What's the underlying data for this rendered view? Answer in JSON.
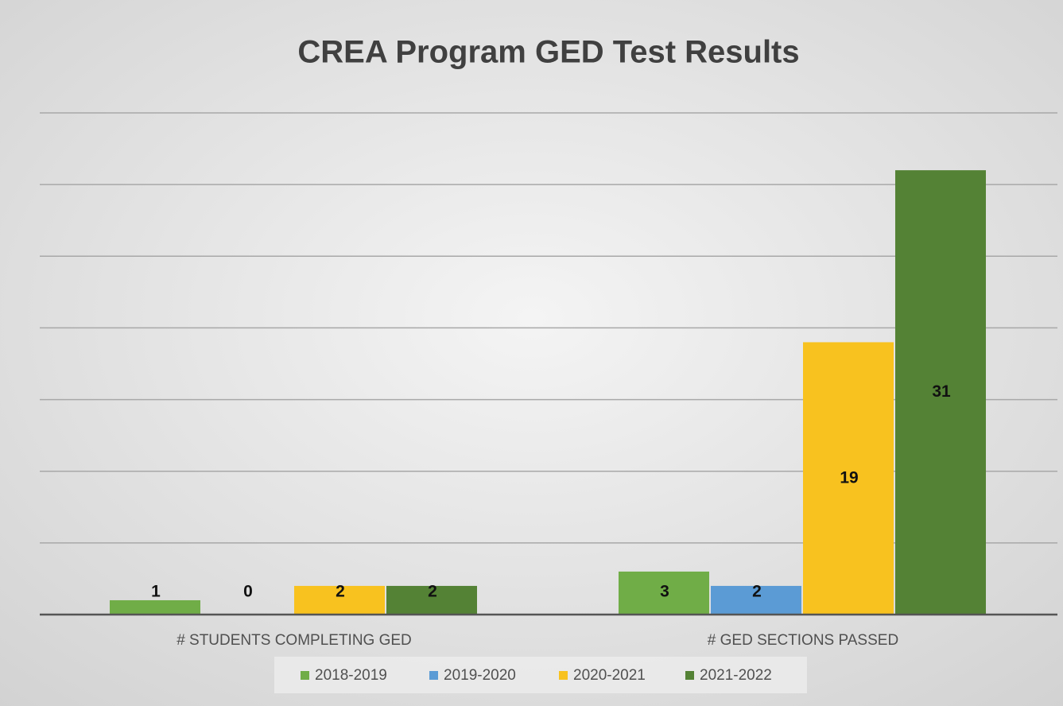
{
  "chart_data": {
    "type": "bar",
    "title": "CREA Program GED Test Results",
    "categories": [
      "# STUDENTS COMPLETING GED",
      "# GED SECTIONS PASSED"
    ],
    "series": [
      {
        "name": "2018-2019",
        "color": "#70ad47",
        "values": [
          1,
          3
        ]
      },
      {
        "name": "2019-2020",
        "color": "#5b9bd5",
        "values": [
          0,
          2
        ]
      },
      {
        "name": "2020-2021",
        "color": "#f8c21f",
        "values": [
          2,
          19
        ]
      },
      {
        "name": "2021-2022",
        "color": "#548235",
        "values": [
          2,
          31
        ]
      }
    ],
    "ylim": [
      0,
      35
    ],
    "yticks": [
      0,
      5,
      10,
      15,
      20,
      25,
      30,
      35
    ],
    "grid": true,
    "legend": "bottom"
  }
}
